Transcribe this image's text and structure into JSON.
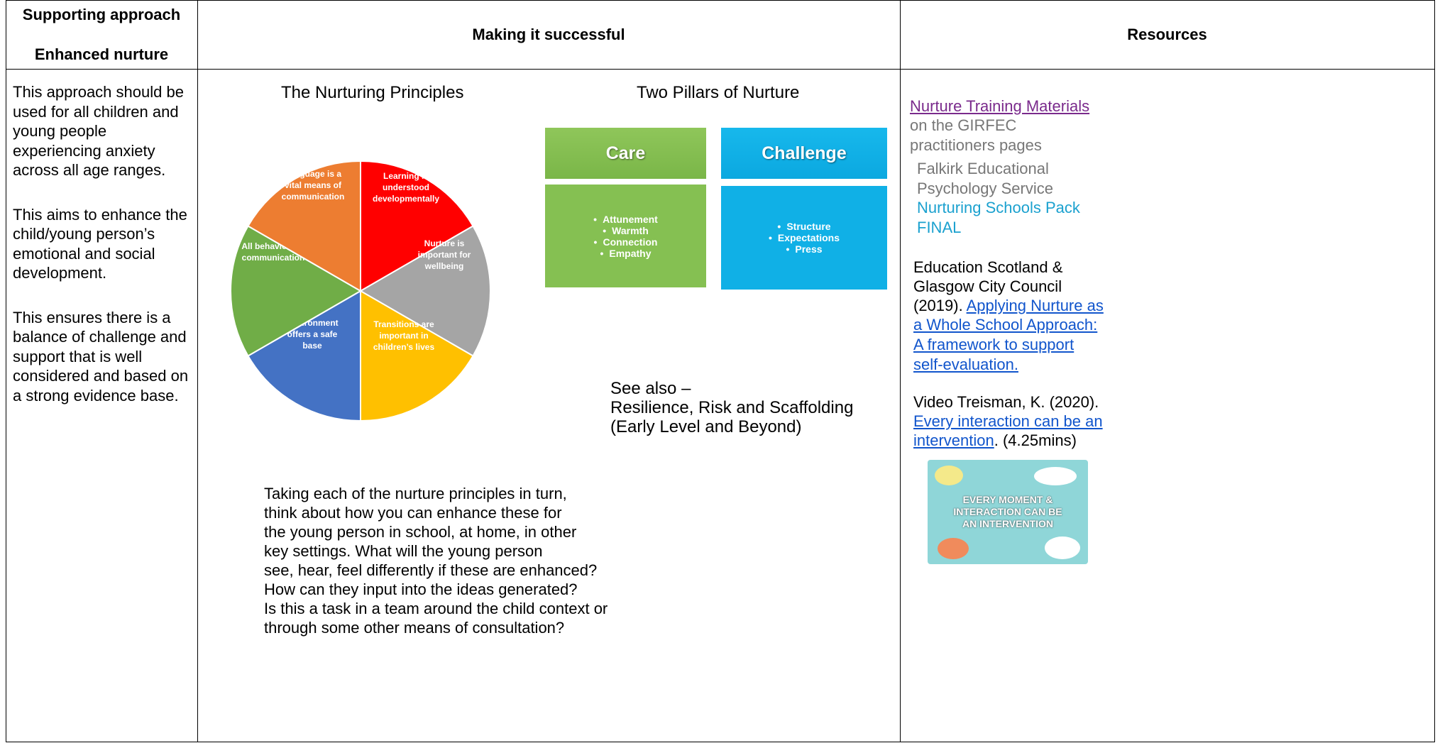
{
  "header": {
    "col1": [
      "Supporting approach",
      "Enhanced nurture"
    ],
    "col2": "Making it successful",
    "col3": "Resources"
  },
  "approach": [
    [
      "This approach should be",
      "used for all children and",
      "young people",
      "experiencing anxiety",
      "across all age ranges."
    ],
    [
      "This aims to enhance the",
      "child/young person’s",
      "emotional and social",
      "development."
    ],
    [
      "This ensures there is a",
      "balance of challenge and",
      "support that is well",
      "considered and based on",
      "a strong evidence base."
    ]
  ],
  "principles": {
    "title": "The Nurturing Principles",
    "segments": [
      [
        "Learning is",
        "understood",
        "developmentally"
      ],
      [
        "Nurture is",
        "important for",
        "wellbeing"
      ],
      [
        "Transitions are",
        "important in",
        "children’s lives"
      ],
      [
        "Environment",
        "offers a safe",
        "base"
      ],
      [
        "All behaviour is",
        "communication"
      ],
      [
        "Language is a",
        "vital means of",
        "communication"
      ]
    ],
    "text": [
      "Taking each of the nurture principles in turn,",
      "think about how you can enhance these for",
      "the young person in school, at home, in other",
      "key settings. What will the young person",
      "see, hear, feel differently if these are enhanced?",
      "How can they input into the ideas generated?",
      "Is this a task in a team around the child context or",
      "through some other means of consultation?"
    ]
  },
  "pillars": {
    "title": "Two Pillars of Nurture",
    "care": {
      "title": "Care",
      "items": [
        "Attunement",
        "Warmth",
        "Connection",
        "Empathy"
      ]
    },
    "challenge": {
      "title": "Challenge",
      "items": [
        "Structure",
        "Expectations",
        "Press"
      ]
    }
  },
  "see_also": [
    "See also –",
    "Resilience, Risk and Scaffolding",
    "(Early Level and Beyond)"
  ],
  "resources": {
    "training": {
      "link": "Nurture Training Materials",
      "text": [
        "on the GIRFEC",
        "practitioners pages"
      ]
    },
    "falkirk": {
      "text": [
        "Falkirk Educational",
        "Psychology Service"
      ],
      "link": [
        "Nurturing Schools Pack",
        "FINAL"
      ]
    },
    "scotland": {
      "text": [
        "Education Scotland &",
        "Glasgow City Council",
        "(2019)."
      ],
      "link": [
        "Applying Nurture as",
        "a Whole School Approach:",
        "A framework to support",
        "self-evaluation."
      ]
    },
    "video": {
      "text": "Video Treisman, K. (2020).",
      "link": [
        "Every interaction can be an",
        "intervention"
      ],
      "after": ". (4.25mins)"
    },
    "image_text": [
      "EVERY MOMENT &",
      "INTERACTION CAN BE",
      "AN INTERVENTION"
    ]
  }
}
